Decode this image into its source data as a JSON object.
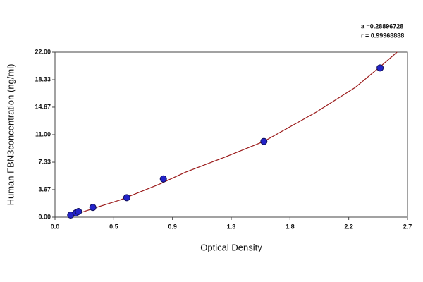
{
  "chart_data": {
    "type": "scatter",
    "xlabel": "Optical Density",
    "ylabel": "Human  FBN3concentration (ng/ml)",
    "annotations": [
      "a =0.28896728",
      "r = 0.99968888"
    ],
    "xlim": [
      0,
      2.7
    ],
    "ylim": [
      0,
      22
    ],
    "xticks": [
      {
        "value": 0,
        "label": "0.0"
      },
      {
        "value": 0.45,
        "label": "0.5"
      },
      {
        "value": 0.9,
        "label": "0.9"
      },
      {
        "value": 1.35,
        "label": "1.3"
      },
      {
        "value": 1.8,
        "label": "1.8"
      },
      {
        "value": 2.25,
        "label": "2.2"
      },
      {
        "value": 2.7,
        "label": "2.7"
      }
    ],
    "yticks": [
      {
        "value": 0,
        "label": "0.00"
      },
      3.67,
      7.33,
      {
        "value": 11,
        "label": "11.00"
      },
      14.67,
      18.33,
      {
        "value": 22,
        "label": "22.00"
      }
    ],
    "points": {
      "color": "#2323c8",
      "x": [
        0.12,
        0.16,
        0.18,
        0.29,
        0.55,
        0.83,
        1.6,
        2.49
      ],
      "y": [
        0.28,
        0.56,
        0.75,
        1.3,
        2.6,
        5.1,
        10.1,
        19.9
      ]
    },
    "fit": {
      "color": "#9b1b1b",
      "x": [
        0.1,
        0.3,
        0.5,
        0.8,
        1.0,
        1.3,
        1.6,
        2.0,
        2.3,
        2.5,
        2.62
      ],
      "y": [
        0.05,
        1.2,
        2.3,
        4.4,
        6.0,
        8.0,
        10.1,
        14.0,
        17.3,
        20.2,
        22.0
      ]
    }
  }
}
